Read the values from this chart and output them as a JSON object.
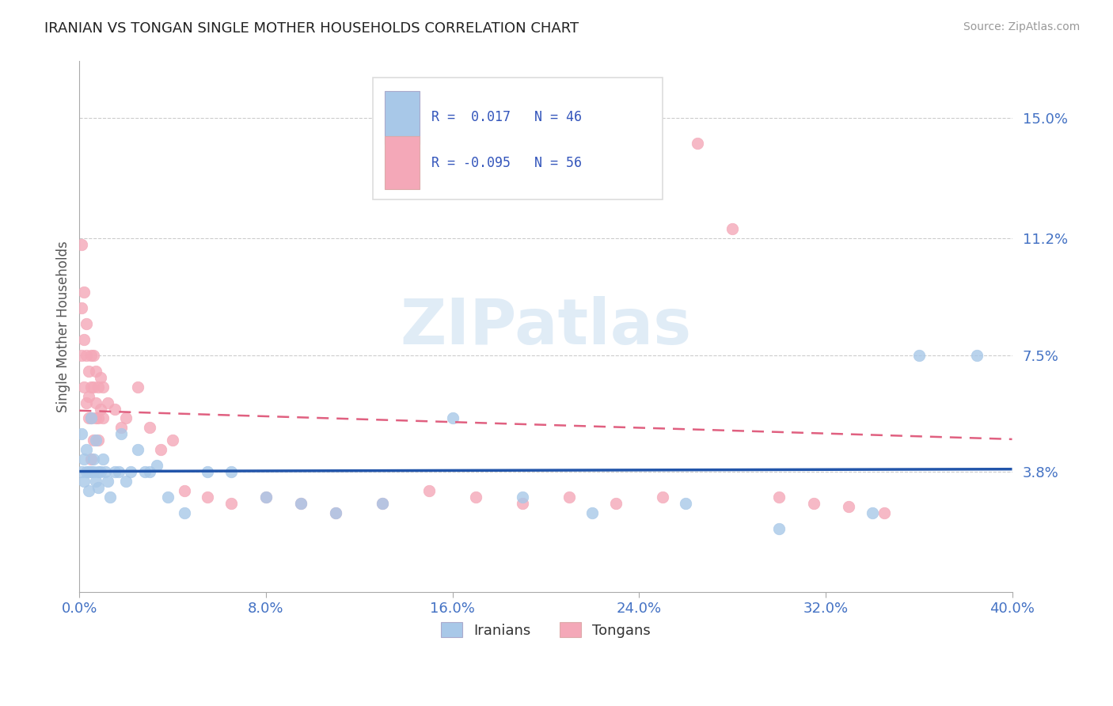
{
  "title": "IRANIAN VS TONGAN SINGLE MOTHER HOUSEHOLDS CORRELATION CHART",
  "source": "Source: ZipAtlas.com",
  "ylabel": "Single Mother Households",
  "yticks": [
    3.8,
    7.5,
    11.2,
    15.0
  ],
  "xlim": [
    0.0,
    0.4
  ],
  "ylim": [
    0.0,
    0.168
  ],
  "iranian_R": 0.017,
  "iranian_N": 46,
  "tongan_R": -0.095,
  "tongan_N": 56,
  "iranian_color": "#a8c8e8",
  "tongan_color": "#f4a8b8",
  "iranian_line_color": "#2255aa",
  "tongan_line_color": "#e06080",
  "grid_color": "#cccccc",
  "background_color": "#ffffff",
  "watermark": "ZIPatlas",
  "iranian_x": [
    0.001,
    0.001,
    0.002,
    0.002,
    0.003,
    0.003,
    0.004,
    0.004,
    0.005,
    0.005,
    0.006,
    0.006,
    0.007,
    0.007,
    0.008,
    0.008,
    0.009,
    0.01,
    0.011,
    0.012,
    0.013,
    0.015,
    0.017,
    0.018,
    0.02,
    0.022,
    0.025,
    0.028,
    0.03,
    0.033,
    0.038,
    0.045,
    0.055,
    0.065,
    0.08,
    0.095,
    0.11,
    0.13,
    0.16,
    0.19,
    0.22,
    0.26,
    0.3,
    0.34,
    0.36,
    0.385
  ],
  "iranian_y": [
    0.038,
    0.05,
    0.042,
    0.035,
    0.038,
    0.045,
    0.038,
    0.032,
    0.038,
    0.055,
    0.038,
    0.042,
    0.035,
    0.048,
    0.038,
    0.033,
    0.038,
    0.042,
    0.038,
    0.035,
    0.03,
    0.038,
    0.038,
    0.05,
    0.035,
    0.038,
    0.045,
    0.038,
    0.038,
    0.04,
    0.03,
    0.025,
    0.038,
    0.038,
    0.03,
    0.028,
    0.025,
    0.028,
    0.055,
    0.03,
    0.025,
    0.028,
    0.02,
    0.025,
    0.075,
    0.075
  ],
  "tongan_x": [
    0.001,
    0.001,
    0.001,
    0.002,
    0.002,
    0.002,
    0.003,
    0.003,
    0.003,
    0.004,
    0.004,
    0.004,
    0.005,
    0.005,
    0.005,
    0.005,
    0.006,
    0.006,
    0.006,
    0.007,
    0.007,
    0.007,
    0.008,
    0.008,
    0.008,
    0.009,
    0.009,
    0.01,
    0.01,
    0.012,
    0.015,
    0.018,
    0.02,
    0.025,
    0.03,
    0.035,
    0.04,
    0.045,
    0.055,
    0.065,
    0.08,
    0.095,
    0.11,
    0.13,
    0.15,
    0.17,
    0.19,
    0.21,
    0.23,
    0.25,
    0.265,
    0.28,
    0.3,
    0.315,
    0.33,
    0.345
  ],
  "tongan_y": [
    0.11,
    0.09,
    0.075,
    0.095,
    0.08,
    0.065,
    0.085,
    0.075,
    0.06,
    0.07,
    0.062,
    0.055,
    0.075,
    0.065,
    0.055,
    0.042,
    0.075,
    0.065,
    0.048,
    0.07,
    0.06,
    0.055,
    0.065,
    0.055,
    0.048,
    0.068,
    0.058,
    0.065,
    0.055,
    0.06,
    0.058,
    0.052,
    0.055,
    0.065,
    0.052,
    0.045,
    0.048,
    0.032,
    0.03,
    0.028,
    0.03,
    0.028,
    0.025,
    0.028,
    0.032,
    0.03,
    0.028,
    0.03,
    0.028,
    0.03,
    0.142,
    0.115,
    0.03,
    0.028,
    0.027,
    0.025
  ]
}
